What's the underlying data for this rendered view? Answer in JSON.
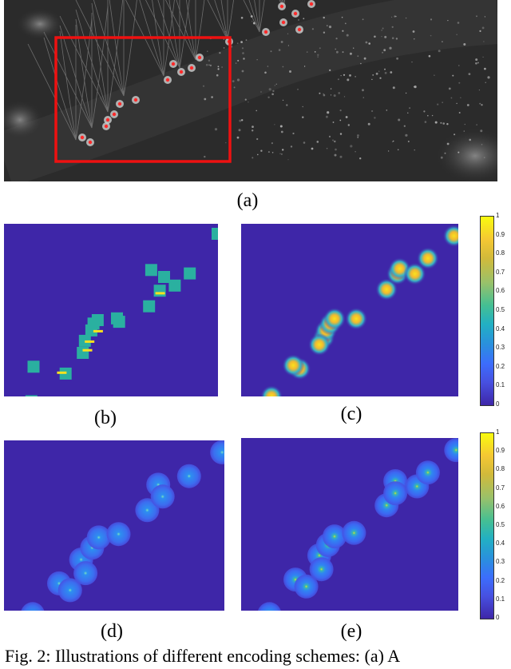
{
  "captions": {
    "a": "(a)",
    "b": "(b)",
    "c": "(c)",
    "d": "(d)",
    "e": "(e)"
  },
  "figure_caption": "Fig. 2: Illustrations of different encoding schemes: (a) A",
  "colors": {
    "map_background": "#3e26a8",
    "box_fill": "#2ab0a0",
    "mark": "#f9e21e",
    "annotation_box": "#ee1111",
    "cell_marker": "#ff2a2a"
  },
  "colorbar_top": {
    "ticks": [
      "1",
      "0.9",
      "0.8",
      "0.7",
      "0.6",
      "0.5",
      "0.4",
      "0.3",
      "0.2",
      "0.1",
      "0"
    ]
  },
  "colorbar_bottom": {
    "ticks": [
      "1",
      "0.9",
      "0.8",
      "0.7",
      "0.6",
      "0.5",
      "0.4",
      "0.3",
      "0.2",
      "0.1",
      "0"
    ]
  },
  "chart_data": [
    {
      "type": "heatmap",
      "panel": "b",
      "colormap": "parula",
      "range": [
        0,
        1
      ],
      "encoding": "square boxes around cell centers"
    },
    {
      "type": "heatmap",
      "panel": "c",
      "colormap": "parula",
      "range": [
        0,
        1
      ],
      "encoding": "gaussian blobs around cell centers"
    },
    {
      "type": "heatmap",
      "panel": "d",
      "colormap": "parula",
      "range": [
        0,
        1
      ],
      "encoding": "large discs with bright centers"
    },
    {
      "type": "heatmap",
      "panel": "e",
      "colormap": "parula",
      "range": [
        0,
        1
      ],
      "encoding": "discs with brighter center peaks"
    }
  ]
}
